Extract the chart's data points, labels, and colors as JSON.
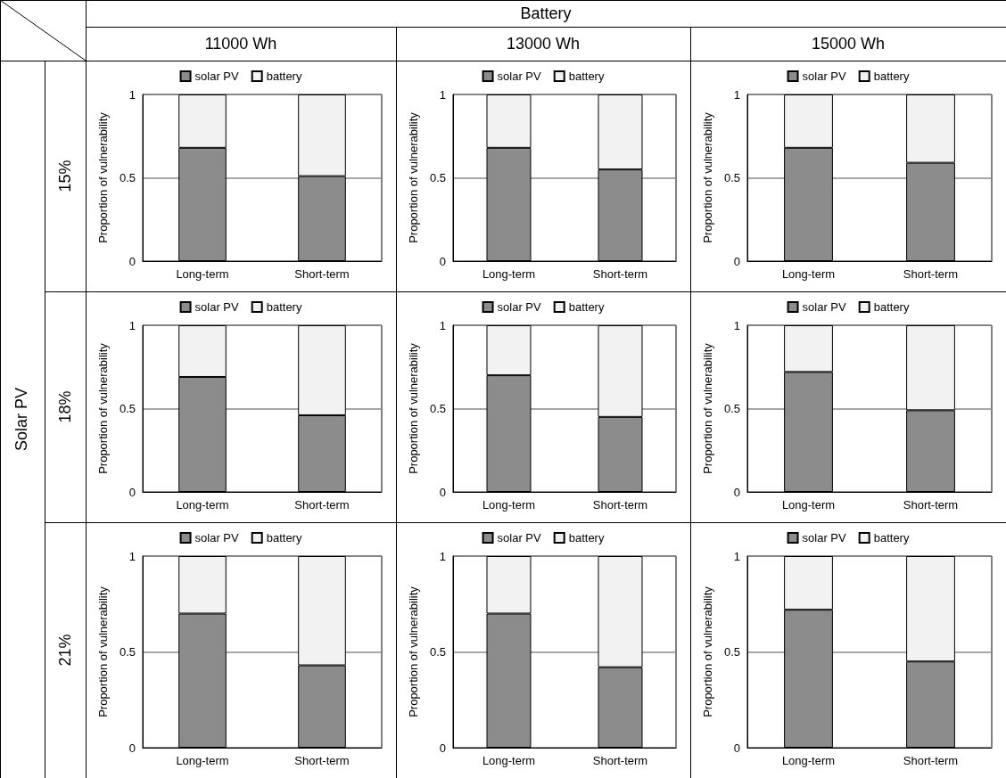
{
  "chart_data": [
    {
      "type": "other",
      "title": "Battery",
      "categories": [
        "11000 Wh",
        "13000 Wh",
        "15000 Wh"
      ],
      "ylabel": "Solar PV",
      "y_categories": [
        "15%",
        "18%",
        "21%"
      ]
    },
    {
      "type": "bar",
      "stacked": true,
      "categories": [
        "Long-term",
        "Short-term"
      ],
      "ylabel": "Proportion of vulnerability",
      "ylim": [
        0,
        1
      ],
      "yticks": [
        0,
        0.5,
        1
      ],
      "grid": "y",
      "legend": "top",
      "series": [
        {
          "name": "solar PV",
          "color": "#8c8c8c",
          "values": [
            0.68,
            0.51
          ]
        },
        {
          "name": "battery",
          "color": "#f2f2f2",
          "values": [
            0.32,
            0.49
          ]
        }
      ]
    },
    {
      "type": "bar",
      "stacked": true,
      "categories": [
        "Long-term",
        "Short-term"
      ],
      "ylabel": "Proportion of vulnerability",
      "ylim": [
        0,
        1
      ],
      "yticks": [
        0,
        0.5,
        1
      ],
      "grid": "y",
      "legend": "top",
      "series": [
        {
          "name": "solar PV",
          "color": "#8c8c8c",
          "values": [
            0.68,
            0.55
          ]
        },
        {
          "name": "battery",
          "color": "#f2f2f2",
          "values": [
            0.32,
            0.45
          ]
        }
      ]
    },
    {
      "type": "bar",
      "stacked": true,
      "categories": [
        "Long-term",
        "Short-term"
      ],
      "ylabel": "Proportion of vulnerability",
      "ylim": [
        0,
        1
      ],
      "yticks": [
        0,
        0.5,
        1
      ],
      "grid": "y",
      "legend": "top",
      "series": [
        {
          "name": "solar PV",
          "color": "#8c8c8c",
          "values": [
            0.68,
            0.59
          ]
        },
        {
          "name": "battery",
          "color": "#f2f2f2",
          "values": [
            0.32,
            0.41
          ]
        }
      ]
    },
    {
      "type": "bar",
      "stacked": true,
      "categories": [
        "Long-term",
        "Short-term"
      ],
      "ylabel": "Proportion of vulnerability",
      "ylim": [
        0,
        1
      ],
      "yticks": [
        0,
        0.5,
        1
      ],
      "grid": "y",
      "legend": "top",
      "series": [
        {
          "name": "solar PV",
          "color": "#8c8c8c",
          "values": [
            0.69,
            0.46
          ]
        },
        {
          "name": "battery",
          "color": "#f2f2f2",
          "values": [
            0.31,
            0.54
          ]
        }
      ]
    },
    {
      "type": "bar",
      "stacked": true,
      "categories": [
        "Long-term",
        "Short-term"
      ],
      "ylabel": "Proportion of vulnerability",
      "ylim": [
        0,
        1
      ],
      "yticks": [
        0,
        0.5,
        1
      ],
      "grid": "y",
      "legend": "top",
      "series": [
        {
          "name": "solar PV",
          "color": "#8c8c8c",
          "values": [
            0.7,
            0.45
          ]
        },
        {
          "name": "battery",
          "color": "#f2f2f2",
          "values": [
            0.3,
            0.55
          ]
        }
      ]
    },
    {
      "type": "bar",
      "stacked": true,
      "categories": [
        "Long-term",
        "Short-term"
      ],
      "ylabel": "Proportion of vulnerability",
      "ylim": [
        0,
        1
      ],
      "yticks": [
        0,
        0.5,
        1
      ],
      "grid": "y",
      "legend": "top",
      "series": [
        {
          "name": "solar PV",
          "color": "#8c8c8c",
          "values": [
            0.72,
            0.49
          ]
        },
        {
          "name": "battery",
          "color": "#f2f2f2",
          "values": [
            0.28,
            0.51
          ]
        }
      ]
    },
    {
      "type": "bar",
      "stacked": true,
      "categories": [
        "Long-term",
        "Short-term"
      ],
      "ylabel": "Proportion of vulnerability",
      "ylim": [
        0,
        1
      ],
      "yticks": [
        0,
        0.5,
        1
      ],
      "grid": "y",
      "legend": "top",
      "series": [
        {
          "name": "solar PV",
          "color": "#8c8c8c",
          "values": [
            0.7,
            0.43
          ]
        },
        {
          "name": "battery",
          "color": "#f2f2f2",
          "values": [
            0.3,
            0.57
          ]
        }
      ]
    },
    {
      "type": "bar",
      "stacked": true,
      "categories": [
        "Long-term",
        "Short-term"
      ],
      "ylabel": "Proportion of vulnerability",
      "ylim": [
        0,
        1
      ],
      "yticks": [
        0,
        0.5,
        1
      ],
      "grid": "y",
      "legend": "top",
      "series": [
        {
          "name": "solar PV",
          "color": "#8c8c8c",
          "values": [
            0.7,
            0.42
          ]
        },
        {
          "name": "battery",
          "color": "#f2f2f2",
          "values": [
            0.3,
            0.58
          ]
        }
      ]
    },
    {
      "type": "bar",
      "stacked": true,
      "categories": [
        "Long-term",
        "Short-term"
      ],
      "ylabel": "Proportion of vulnerability",
      "ylim": [
        0,
        1
      ],
      "yticks": [
        0,
        0.5,
        1
      ],
      "grid": "y",
      "legend": "top",
      "series": [
        {
          "name": "solar PV",
          "color": "#8c8c8c",
          "values": [
            0.72,
            0.45
          ]
        },
        {
          "name": "battery",
          "color": "#f2f2f2",
          "values": [
            0.28,
            0.55
          ]
        }
      ]
    }
  ]
}
